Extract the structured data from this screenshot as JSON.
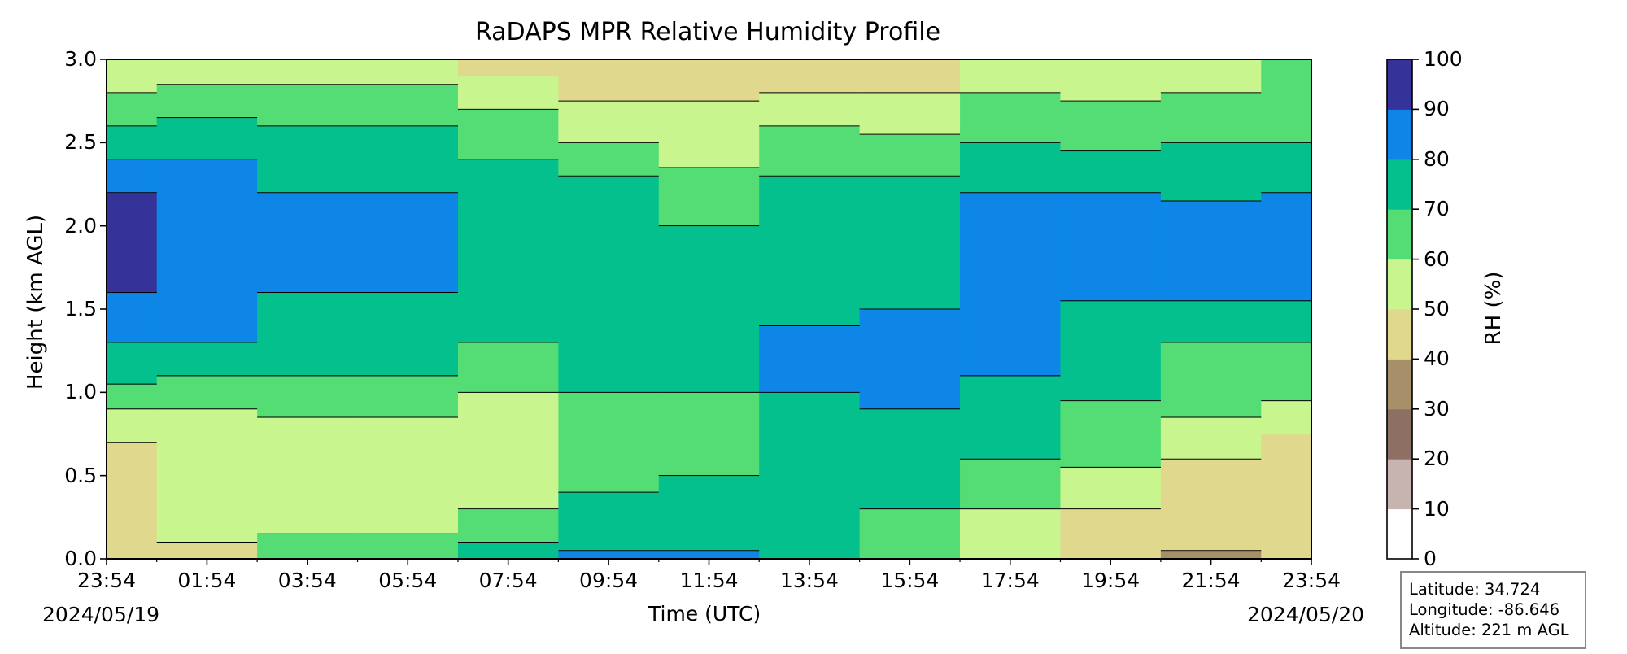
{
  "chart_data": {
    "type": "heatmap",
    "title": "RaDAPS MPR Relative Humidity Profile",
    "xlabel": "Time (UTC)",
    "ylabel": "Height (km AGL)",
    "x_ticks": [
      "23:54",
      "01:54",
      "03:54",
      "05:54",
      "07:54",
      "09:54",
      "11:54",
      "13:54",
      "15:54",
      "17:54",
      "19:54",
      "21:54",
      "23:54"
    ],
    "x_date_start": "2024/05/19",
    "x_date_end": "2024/05/20",
    "y_ticks": [
      "0.0",
      "0.5",
      "1.0",
      "1.5",
      "2.0",
      "2.5",
      "3.0"
    ],
    "ylim": [
      0,
      3.0
    ],
    "colorbar": {
      "label": "RH (%)",
      "ticks": [
        "0",
        "10",
        "20",
        "30",
        "40",
        "50",
        "60",
        "70",
        "80",
        "90",
        "100"
      ],
      "levels": [
        0,
        10,
        20,
        30,
        40,
        50,
        60,
        70,
        80,
        90,
        100
      ],
      "colors": [
        "#ffffff",
        "#c7b4b0",
        "#8e6f64",
        "#a68f69",
        "#e0d98d",
        "#c9f58f",
        "#55dd75",
        "#04c08c",
        "#0d86e8",
        "#35329a"
      ]
    },
    "rh_profile_by_time": [
      {
        "t": "23:54",
        "bands": [
          [
            0,
            0.7,
            40
          ],
          [
            0.7,
            0.9,
            50
          ],
          [
            0.9,
            1.05,
            60
          ],
          [
            1.05,
            1.3,
            70
          ],
          [
            1.3,
            1.6,
            80
          ],
          [
            1.6,
            2.2,
            90
          ],
          [
            2.2,
            2.4,
            80
          ],
          [
            2.4,
            2.6,
            70
          ],
          [
            2.6,
            2.8,
            60
          ],
          [
            2.8,
            3.0,
            50
          ]
        ]
      },
      {
        "t": "01:54",
        "bands": [
          [
            0,
            0.1,
            40
          ],
          [
            0.1,
            0.9,
            50
          ],
          [
            0.9,
            1.1,
            60
          ],
          [
            1.1,
            1.3,
            70
          ],
          [
            1.3,
            2.4,
            80
          ],
          [
            2.4,
            2.65,
            70
          ],
          [
            2.65,
            2.85,
            60
          ],
          [
            2.85,
            3.0,
            50
          ]
        ]
      },
      {
        "t": "03:54",
        "bands": [
          [
            0,
            0.15,
            60
          ],
          [
            0.15,
            0.85,
            50
          ],
          [
            0.85,
            1.1,
            60
          ],
          [
            1.1,
            1.6,
            70
          ],
          [
            1.6,
            2.2,
            80
          ],
          [
            2.2,
            2.6,
            70
          ],
          [
            2.6,
            2.85,
            60
          ],
          [
            2.85,
            3.0,
            50
          ]
        ]
      },
      {
        "t": "05:54",
        "bands": [
          [
            0,
            0.15,
            60
          ],
          [
            0.15,
            0.85,
            50
          ],
          [
            0.85,
            1.1,
            60
          ],
          [
            1.1,
            1.6,
            70
          ],
          [
            1.6,
            2.2,
            80
          ],
          [
            2.2,
            2.6,
            70
          ],
          [
            2.6,
            2.85,
            60
          ],
          [
            2.85,
            3.0,
            50
          ]
        ]
      },
      {
        "t": "07:54",
        "bands": [
          [
            0,
            0.1,
            70
          ],
          [
            0.1,
            0.3,
            60
          ],
          [
            0.3,
            1.0,
            50
          ],
          [
            1.0,
            1.3,
            60
          ],
          [
            1.3,
            2.4,
            70
          ],
          [
            2.4,
            2.7,
            60
          ],
          [
            2.7,
            2.9,
            50
          ],
          [
            2.9,
            3.0,
            40
          ]
        ]
      },
      {
        "t": "09:54",
        "bands": [
          [
            0,
            0.05,
            80
          ],
          [
            0.05,
            0.4,
            70
          ],
          [
            0.4,
            1.0,
            60
          ],
          [
            1.0,
            2.3,
            70
          ],
          [
            2.3,
            2.5,
            60
          ],
          [
            2.5,
            2.75,
            50
          ],
          [
            2.75,
            3.0,
            40
          ]
        ]
      },
      {
        "t": "11:54",
        "bands": [
          [
            0,
            0.05,
            80
          ],
          [
            0.05,
            0.5,
            70
          ],
          [
            0.5,
            1.0,
            60
          ],
          [
            1.0,
            2.0,
            70
          ],
          [
            2.0,
            2.35,
            60
          ],
          [
            2.35,
            2.75,
            50
          ],
          [
            2.75,
            3.0,
            40
          ]
        ]
      },
      {
        "t": "13:54",
        "bands": [
          [
            0,
            1.0,
            70
          ],
          [
            1.0,
            1.4,
            80
          ],
          [
            1.4,
            2.3,
            70
          ],
          [
            2.3,
            2.6,
            60
          ],
          [
            2.6,
            2.8,
            50
          ],
          [
            2.8,
            3.0,
            40
          ]
        ]
      },
      {
        "t": "15:54",
        "bands": [
          [
            0,
            0.3,
            60
          ],
          [
            0.3,
            0.9,
            70
          ],
          [
            0.9,
            1.5,
            80
          ],
          [
            1.5,
            2.3,
            70
          ],
          [
            2.3,
            2.55,
            60
          ],
          [
            2.55,
            2.8,
            50
          ],
          [
            2.8,
            3.0,
            40
          ]
        ]
      },
      {
        "t": "17:54",
        "bands": [
          [
            0,
            0.3,
            50
          ],
          [
            0.3,
            0.6,
            60
          ],
          [
            0.6,
            1.1,
            70
          ],
          [
            1.1,
            2.2,
            80
          ],
          [
            2.2,
            2.5,
            70
          ],
          [
            2.5,
            2.8,
            60
          ],
          [
            2.8,
            3.0,
            50
          ]
        ]
      },
      {
        "t": "19:54",
        "bands": [
          [
            0,
            0.3,
            40
          ],
          [
            0.3,
            0.55,
            50
          ],
          [
            0.55,
            0.95,
            60
          ],
          [
            0.95,
            1.55,
            70
          ],
          [
            1.55,
            2.2,
            80
          ],
          [
            2.2,
            2.45,
            70
          ],
          [
            2.45,
            2.75,
            60
          ],
          [
            2.75,
            3.0,
            50
          ]
        ]
      },
      {
        "t": "21:54",
        "bands": [
          [
            0,
            0.05,
            30
          ],
          [
            0.05,
            0.6,
            40
          ],
          [
            0.6,
            0.85,
            50
          ],
          [
            0.85,
            1.3,
            60
          ],
          [
            1.3,
            1.55,
            70
          ],
          [
            1.55,
            2.15,
            80
          ],
          [
            2.15,
            2.5,
            70
          ],
          [
            2.5,
            2.8,
            60
          ],
          [
            2.8,
            3.0,
            50
          ]
        ]
      },
      {
        "t": "23:54",
        "bands": [
          [
            0,
            0.75,
            40
          ],
          [
            0.75,
            0.95,
            50
          ],
          [
            0.95,
            1.3,
            60
          ],
          [
            1.3,
            1.55,
            70
          ],
          [
            1.55,
            2.2,
            80
          ],
          [
            2.2,
            2.5,
            70
          ],
          [
            2.5,
            3.0,
            60
          ]
        ]
      }
    ]
  },
  "station_info": {
    "latitude": "Latitude: 34.724",
    "longitude": "Longitude: -86.646",
    "altitude": "Altitude: 221 m AGL"
  }
}
